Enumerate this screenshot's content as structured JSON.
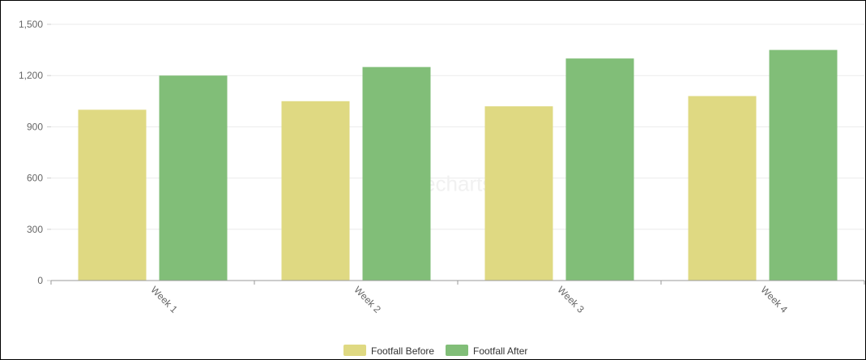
{
  "chart_data": {
    "type": "bar",
    "title": "",
    "xlabel": "",
    "ylabel": "",
    "categories": [
      "Week 1",
      "Week 2",
      "Week 3",
      "Week 4"
    ],
    "series": [
      {
        "name": "Footfall Before",
        "values": [
          1000,
          1050,
          1020,
          1080
        ],
        "color": "#dfd982"
      },
      {
        "name": "Footfall After",
        "values": [
          1200,
          1250,
          1300,
          1350
        ],
        "color": "#81be78"
      }
    ],
    "ylim": [
      0,
      1500
    ],
    "yticks": [
      0,
      300,
      600,
      900,
      1200,
      1500
    ],
    "ytick_labels": [
      "0",
      "300",
      "600",
      "900",
      "1,200",
      "1,500"
    ],
    "grid": true,
    "legend": "bottom-center",
    "watermark": "onecharts.io"
  }
}
